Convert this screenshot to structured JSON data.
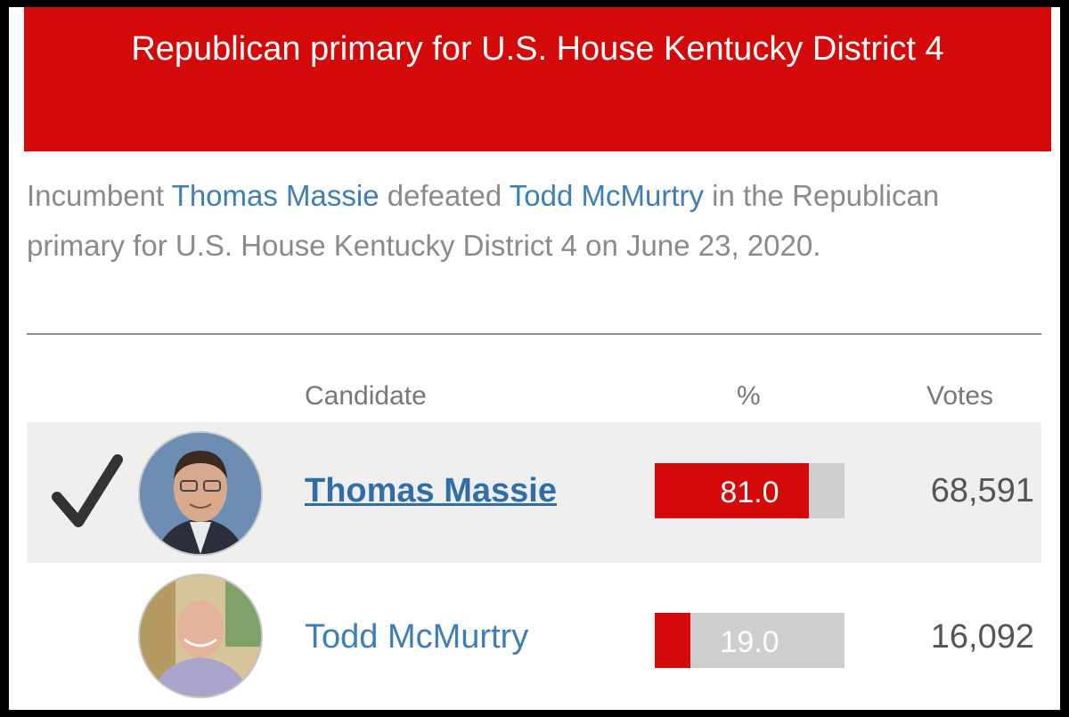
{
  "header": {
    "title": "Republican primary for U.S. House Kentucky District 4"
  },
  "summary": {
    "prefix": "Incumbent ",
    "winner_link": "Thomas Massie",
    "middle": " defeated ",
    "loser_link": "Todd McMurtry",
    "suffix": " in the Republican primary for U.S. House Kentucky District 4 on June 23, 2020."
  },
  "table": {
    "headers": {
      "candidate": "Candidate",
      "percent": "%",
      "votes": "Votes"
    },
    "rows": [
      {
        "name": "Thomas Massie",
        "percent": "81.0",
        "percent_value": 81.0,
        "votes": "68,591",
        "winner": true
      },
      {
        "name": "Todd McMurtry",
        "percent": "19.0",
        "percent_value": 19.0,
        "votes": "16,092",
        "winner": false
      }
    ]
  },
  "icons": {
    "winner_mark": "checkmark-icon",
    "photo": "candidate-photo"
  },
  "colors": {
    "accent_red": "#d40a0a",
    "link_blue": "#3f7eb3",
    "bar_bg": "#cfcfcf"
  }
}
